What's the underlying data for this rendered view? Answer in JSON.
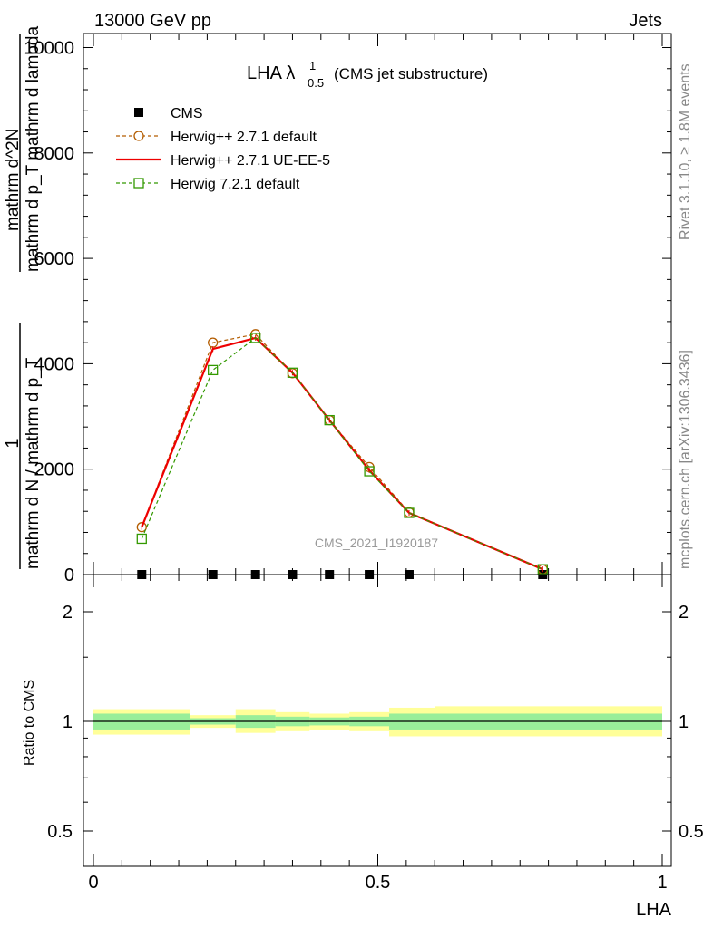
{
  "header": {
    "left": "13000 GeV pp",
    "right": "Jets"
  },
  "side": {
    "rivet": "Rivet 3.1.10, ≥ 1.8M events",
    "mcplots": "mcplots.cern.ch [arXiv:1306.3436]"
  },
  "title": {
    "main": "LHA λ",
    "sup": "1",
    "sub": "0.5",
    "suffix": "(CMS jet substructure)"
  },
  "ylabel_top": {
    "frac_num": "1",
    "frac_den": "mathrm d N / mathrm d p_T",
    "rhs_num": "mathrm d^2N",
    "rhs_den": "mathrm d p_T mathrm d lambda"
  },
  "ylabel_bottom": "Ratio to CMS",
  "xlabel": "LHA",
  "watermark": "CMS_2021_I1920187",
  "legend": [
    {
      "label": "CMS",
      "color": "#000000",
      "style": "marker-square"
    },
    {
      "label": "Herwig++ 2.7.1 default",
      "color": "#b35c00",
      "style": "dashed-circle"
    },
    {
      "label": "Herwig++ 2.7.1 UE-EE-5",
      "color": "#ee0000",
      "style": "solid"
    },
    {
      "label": "Herwig 7.2.1 default",
      "color": "#339900",
      "style": "dashed-square"
    }
  ],
  "chart_data": [
    {
      "type": "line",
      "xlim": [
        0,
        1
      ],
      "ylim": [
        0,
        10200
      ],
      "yticks": [
        "0",
        "2000",
        "4000",
        "6000",
        "8000",
        "10000"
      ],
      "yticks_values": [
        0,
        2000,
        4000,
        6000,
        8000,
        10000
      ],
      "xticks": [
        "0",
        "0.5",
        "1"
      ],
      "xticks_values": [
        0,
        0.5,
        1
      ],
      "series": [
        {
          "name": "CMS",
          "color": "#000000",
          "x": [
            0.085,
            0.21,
            0.285,
            0.35,
            0.415,
            0.485,
            0.555,
            0.79
          ],
          "y": [
            0,
            0,
            0,
            0,
            0,
            0,
            0,
            0
          ]
        },
        {
          "name": "Herwig++ 2.7.1 default",
          "color": "#b35c00",
          "x": [
            0.085,
            0.21,
            0.285,
            0.35,
            0.415,
            0.485,
            0.555,
            0.79
          ],
          "y": [
            900,
            4400,
            4560,
            3820,
            2930,
            2040,
            1180,
            100
          ]
        },
        {
          "name": "Herwig++ 2.7.1 UE-EE-5",
          "color": "#ee0000",
          "x": [
            0.085,
            0.21,
            0.285,
            0.35,
            0.415,
            0.485,
            0.555,
            0.79
          ],
          "y": [
            900,
            4280,
            4490,
            3830,
            2930,
            1980,
            1170,
            100
          ]
        },
        {
          "name": "Herwig 7.2.1 default",
          "color": "#339900",
          "x": [
            0.085,
            0.21,
            0.285,
            0.35,
            0.415,
            0.485,
            0.555,
            0.79
          ],
          "y": [
            680,
            3880,
            4490,
            3830,
            2930,
            1960,
            1170,
            100
          ]
        }
      ]
    },
    {
      "type": "area",
      "xlim": [
        0,
        1
      ],
      "ylim": [
        0.38,
        2.3
      ],
      "yticks": [
        "0.5",
        "1",
        "2"
      ],
      "yticks_values": [
        0.5,
        1,
        2
      ],
      "xticks": [
        "0",
        "0.5",
        "1"
      ],
      "xticks_values": [
        0,
        0.5,
        1
      ],
      "reference": 1,
      "bins": [
        {
          "x0": 0.0,
          "x1": 0.17,
          "stat": [
            0.95,
            1.05
          ],
          "total": [
            0.92,
            1.08
          ]
        },
        {
          "x0": 0.17,
          "x1": 0.25,
          "stat": [
            0.98,
            1.02
          ],
          "total": [
            0.96,
            1.04
          ]
        },
        {
          "x0": 0.25,
          "x1": 0.32,
          "stat": [
            0.96,
            1.04
          ],
          "total": [
            0.93,
            1.08
          ]
        },
        {
          "x0": 0.32,
          "x1": 0.38,
          "stat": [
            0.97,
            1.03
          ],
          "total": [
            0.94,
            1.06
          ]
        },
        {
          "x0": 0.38,
          "x1": 0.45,
          "stat": [
            0.975,
            1.025
          ],
          "total": [
            0.95,
            1.05
          ]
        },
        {
          "x0": 0.45,
          "x1": 0.52,
          "stat": [
            0.97,
            1.03
          ],
          "total": [
            0.94,
            1.06
          ]
        },
        {
          "x0": 0.52,
          "x1": 0.6,
          "stat": [
            0.95,
            1.05
          ],
          "total": [
            0.91,
            1.09
          ]
        },
        {
          "x0": 0.6,
          "x1": 1.0,
          "stat": [
            0.95,
            1.05
          ],
          "total": [
            0.91,
            1.1
          ]
        }
      ],
      "stat_color": "#99ee99",
      "total_color": "#ffff99"
    }
  ]
}
